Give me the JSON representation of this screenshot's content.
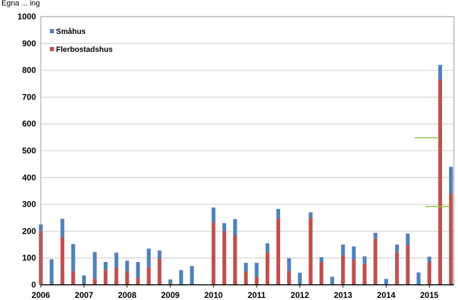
{
  "header_fragment": "Egna  ...  ing",
  "chart_data": {
    "type": "bar",
    "stacked": true,
    "title": "",
    "xlabel": "",
    "ylabel": "",
    "ylim": [
      0,
      1000
    ],
    "yticks": [
      0,
      100,
      200,
      300,
      400,
      500,
      600,
      700,
      800,
      900,
      1000
    ],
    "x_tick_labels": [
      "2006",
      "2007",
      "2008",
      "2009",
      "2010",
      "2011",
      "2012",
      "2013",
      "2014",
      "2015"
    ],
    "bars_per_year": 4,
    "legend_position": "top-left",
    "grid": "horizontal",
    "series": [
      {
        "name": "Flerbostadshus",
        "color": "#c0504d",
        "values": [
          200,
          0,
          178,
          50,
          0,
          25,
          55,
          65,
          50,
          25,
          65,
          98,
          5,
          0,
          0,
          0,
          233,
          200,
          183,
          50,
          30,
          120,
          248,
          52,
          0,
          250,
          85,
          0,
          110,
          95,
          78,
          172,
          0,
          122,
          148,
          0,
          85,
          765,
          340
        ]
      },
      {
        "name": "Småhus",
        "color": "#4f81bd",
        "values": [
          25,
          95,
          68,
          102,
          35,
          97,
          30,
          55,
          40,
          60,
          70,
          30,
          15,
          55,
          70,
          0,
          55,
          30,
          62,
          32,
          52,
          35,
          35,
          47,
          45,
          20,
          18,
          30,
          40,
          48,
          28,
          22,
          22,
          28,
          43,
          46,
          20,
          55,
          100
        ]
      }
    ],
    "reference_lines": [
      {
        "color": "#8ac43f",
        "value": 548
      },
      {
        "color": "#8ac43f",
        "value": 292
      }
    ]
  }
}
